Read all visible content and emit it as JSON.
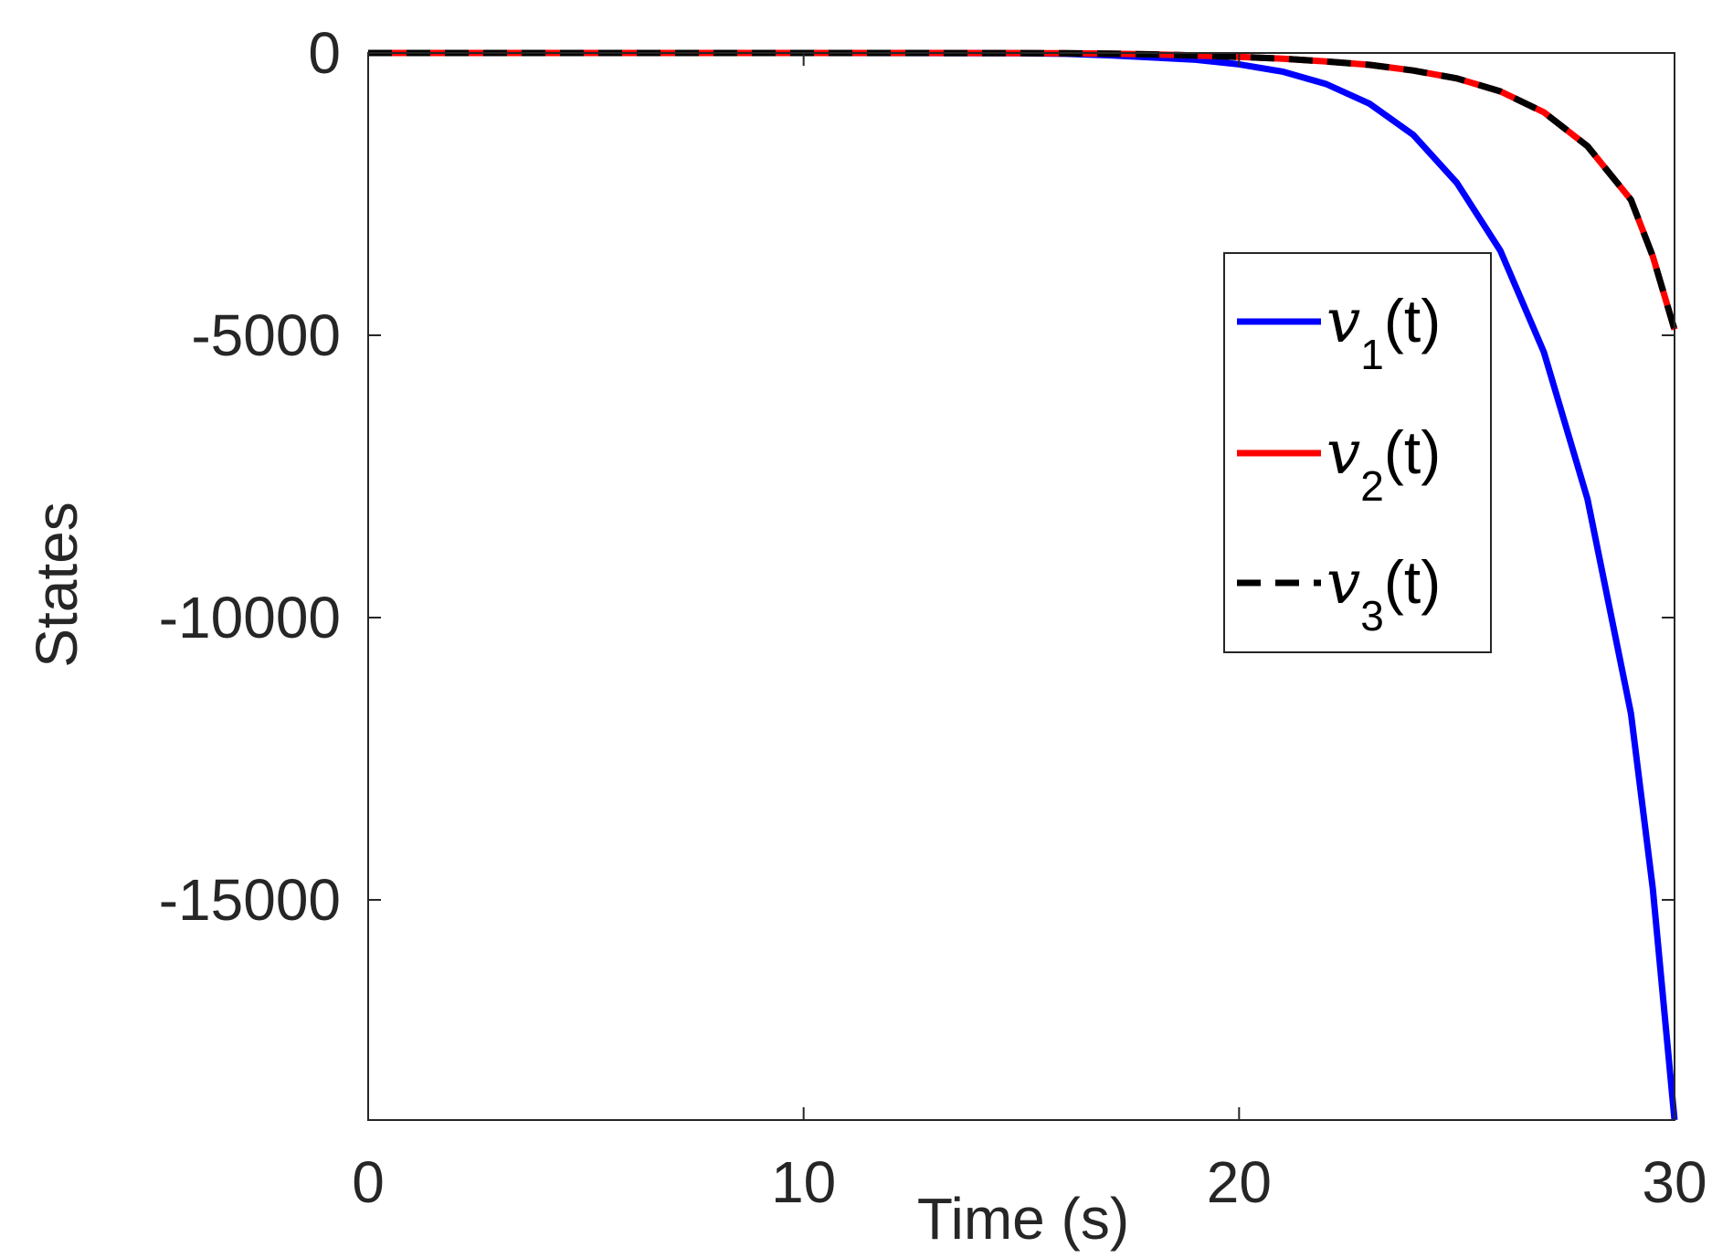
{
  "chart_data": {
    "type": "line",
    "title": "",
    "xlabel": "Time (s)",
    "ylabel": "States",
    "xlim": [
      0,
      30
    ],
    "ylim": [
      -18900,
      0
    ],
    "xticks": [
      0,
      10,
      20,
      30
    ],
    "xtick_labels": [
      "0",
      "10",
      "20",
      "30"
    ],
    "yticks": [
      0,
      -5000,
      -10000,
      -15000
    ],
    "ytick_labels": [
      "0",
      "-5000",
      "-10000",
      "-15000"
    ],
    "grid": false,
    "legend_position": "right",
    "x": [
      0,
      5,
      10,
      15,
      16,
      17,
      18,
      19,
      20,
      21,
      22,
      23,
      24,
      25,
      26,
      27,
      28,
      29,
      29.5,
      30
    ],
    "series": [
      {
        "id": "v1",
        "name_var": "v",
        "name_sub": "1",
        "name_suffix": "(t)",
        "color": "#0000ff",
        "dash": "solid",
        "values": [
          0,
          0,
          0,
          -5,
          -15,
          -40,
          -80,
          -120,
          -200,
          -330,
          -550,
          -900,
          -1450,
          -2300,
          -3500,
          -5300,
          -7900,
          -11700,
          -14800,
          -18900
        ]
      },
      {
        "id": "v2",
        "name_var": "v",
        "name_sub": "2",
        "name_suffix": "(t)",
        "color": "#ff0000",
        "dash": "solid",
        "values": [
          0,
          0,
          0,
          -2,
          -5,
          -12,
          -25,
          -45,
          -70,
          -100,
          -150,
          -210,
          -310,
          -450,
          -680,
          -1050,
          -1650,
          -2600,
          -3600,
          -4900
        ]
      },
      {
        "id": "v3",
        "name_var": "v",
        "name_sub": "3",
        "name_suffix": "(t)",
        "color": "#000000",
        "dash": "dashed",
        "values": [
          0,
          0,
          0,
          -2,
          -5,
          -12,
          -25,
          -45,
          -70,
          -100,
          -150,
          -210,
          -310,
          -450,
          -680,
          -1050,
          -1650,
          -2600,
          -3600,
          -4900
        ]
      }
    ]
  }
}
